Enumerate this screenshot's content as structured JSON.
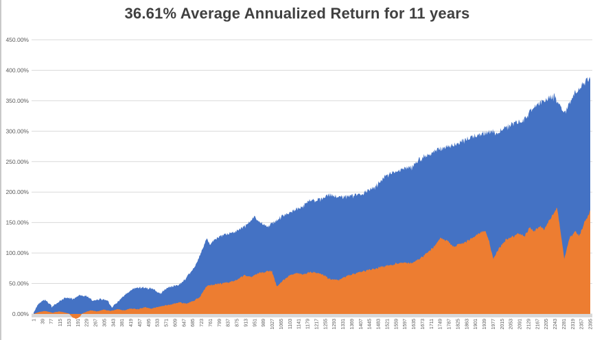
{
  "title": "36.61% Average Annualized Return for 11 years",
  "colors": {
    "series_blue": "#4472C4",
    "series_orange": "#ED7D31",
    "gridline": "#d9d9d9",
    "axis_strip": "#d8d8d8",
    "tick_label": "#595959",
    "title_text": "#404040"
  },
  "chart_data": {
    "type": "area",
    "title": "36.61% Average Annualized Return for 11 years",
    "xlabel": "",
    "ylabel": "",
    "grid": true,
    "legend": "none",
    "x_points_total": 2395,
    "x_axis": {
      "tick_labels": [
        1,
        39,
        77,
        115,
        153,
        191,
        229,
        267,
        305,
        343,
        381,
        419,
        457,
        495,
        533,
        571,
        609,
        647,
        685,
        723,
        761,
        799,
        837,
        875,
        913,
        951,
        989,
        1027,
        1065,
        1103,
        1141,
        1179,
        1217,
        1255,
        1293,
        1331,
        1369,
        1407,
        1445,
        1483,
        1521,
        1559,
        1597,
        1635,
        1673,
        1711,
        1749,
        1787,
        1825,
        1863,
        1901,
        1939,
        1977,
        2015,
        2053,
        2091,
        2129,
        2167,
        2205,
        2243,
        2281,
        2319,
        2357,
        2395
      ]
    },
    "y_axis": {
      "min": 0,
      "max": 450,
      "step": 50,
      "tick_labels": [
        "450.00%",
        "400.00%",
        "350.00%",
        "300.00%",
        "250.00%",
        "200.00%",
        "150.00%",
        "100.00%",
        "50.00%",
        "0.00%"
      ]
    },
    "series": [
      {
        "name": "cumulative-return-blue",
        "color": "#4472C4",
        "unit": "percent",
        "keypoints": [
          [
            1,
            2
          ],
          [
            20,
            16
          ],
          [
            36,
            22
          ],
          [
            50,
            24
          ],
          [
            80,
            12
          ],
          [
            110,
            20
          ],
          [
            140,
            27
          ],
          [
            170,
            25
          ],
          [
            200,
            31
          ],
          [
            230,
            29
          ],
          [
            258,
            21
          ],
          [
            290,
            25
          ],
          [
            320,
            22
          ],
          [
            338,
            11
          ],
          [
            368,
            22
          ],
          [
            400,
            33
          ],
          [
            428,
            41
          ],
          [
            456,
            44
          ],
          [
            486,
            43
          ],
          [
            515,
            41
          ],
          [
            545,
            33
          ],
          [
            575,
            43
          ],
          [
            604,
            46
          ],
          [
            630,
            49
          ],
          [
            655,
            58
          ],
          [
            680,
            70
          ],
          [
            700,
            82
          ],
          [
            715,
            95
          ],
          [
            730,
            108
          ],
          [
            746,
            124
          ],
          [
            760,
            115
          ],
          [
            775,
            121
          ],
          [
            805,
            127
          ],
          [
            835,
            131
          ],
          [
            864,
            135
          ],
          [
            894,
            140
          ],
          [
            923,
            148
          ],
          [
            953,
            161
          ],
          [
            968,
            152
          ],
          [
            1012,
            144
          ],
          [
            1056,
            157
          ],
          [
            1086,
            164
          ],
          [
            1145,
            174
          ],
          [
            1189,
            186
          ],
          [
            1248,
            189
          ],
          [
            1269,
            196
          ],
          [
            1307,
            192
          ],
          [
            1366,
            194
          ],
          [
            1396,
            195
          ],
          [
            1455,
            205
          ],
          [
            1505,
            222
          ],
          [
            1514,
            228
          ],
          [
            1573,
            236
          ],
          [
            1632,
            242
          ],
          [
            1663,
            256
          ],
          [
            1721,
            266
          ],
          [
            1750,
            271
          ],
          [
            1810,
            277
          ],
          [
            1839,
            283
          ],
          [
            1898,
            292
          ],
          [
            1928,
            296
          ],
          [
            1975,
            300
          ],
          [
            1990,
            295
          ],
          [
            2017,
            305
          ],
          [
            2061,
            312
          ],
          [
            2105,
            318
          ],
          [
            2150,
            338
          ],
          [
            2194,
            350
          ],
          [
            2239,
            358
          ],
          [
            2259,
            345
          ],
          [
            2289,
            330
          ],
          [
            2306,
            350
          ],
          [
            2327,
            362
          ],
          [
            2357,
            374
          ],
          [
            2386,
            385
          ],
          [
            2395,
            388
          ]
        ]
      },
      {
        "name": "cumulative-return-orange",
        "color": "#ED7D31",
        "unit": "percent",
        "keypoints": [
          [
            1,
            0
          ],
          [
            22,
            3
          ],
          [
            51,
            5
          ],
          [
            81,
            2
          ],
          [
            110,
            4
          ],
          [
            140,
            2
          ],
          [
            155,
            0
          ],
          [
            169,
            -6
          ],
          [
            184,
            -8
          ],
          [
            199,
            -5
          ],
          [
            208,
            0
          ],
          [
            229,
            4
          ],
          [
            249,
            6
          ],
          [
            273,
            4
          ],
          [
            302,
            7
          ],
          [
            332,
            5
          ],
          [
            362,
            8
          ],
          [
            391,
            6
          ],
          [
            421,
            9
          ],
          [
            450,
            8
          ],
          [
            480,
            11
          ],
          [
            509,
            9
          ],
          [
            539,
            12
          ],
          [
            583,
            15
          ],
          [
            628,
            19
          ],
          [
            657,
            17
          ],
          [
            687,
            21
          ],
          [
            716,
            28
          ],
          [
            746,
            46
          ],
          [
            775,
            48
          ],
          [
            805,
            50
          ],
          [
            864,
            54
          ],
          [
            908,
            64
          ],
          [
            938,
            61
          ],
          [
            967,
            67
          ],
          [
            997,
            69
          ],
          [
            1026,
            71
          ],
          [
            1047,
            45
          ],
          [
            1071,
            54
          ],
          [
            1100,
            63
          ],
          [
            1130,
            67
          ],
          [
            1160,
            65
          ],
          [
            1189,
            69
          ],
          [
            1233,
            67
          ],
          [
            1278,
            57
          ],
          [
            1313,
            56
          ],
          [
            1352,
            63
          ],
          [
            1396,
            68
          ],
          [
            1440,
            72
          ],
          [
            1484,
            76
          ],
          [
            1529,
            80
          ],
          [
            1573,
            84
          ],
          [
            1632,
            84
          ],
          [
            1677,
            95
          ],
          [
            1721,
            110
          ],
          [
            1750,
            124
          ],
          [
            1780,
            120
          ],
          [
            1810,
            110
          ],
          [
            1839,
            116
          ],
          [
            1869,
            121
          ],
          [
            1898,
            127
          ],
          [
            1928,
            135
          ],
          [
            1942,
            137
          ],
          [
            1960,
            120
          ],
          [
            1978,
            90
          ],
          [
            2002,
            108
          ],
          [
            2031,
            122
          ],
          [
            2061,
            127
          ],
          [
            2090,
            133
          ],
          [
            2111,
            126
          ],
          [
            2134,
            142
          ],
          [
            2155,
            136
          ],
          [
            2179,
            144
          ],
          [
            2199,
            139
          ],
          [
            2224,
            157
          ],
          [
            2253,
            174
          ],
          [
            2283,
            91
          ],
          [
            2306,
            125
          ],
          [
            2330,
            136
          ],
          [
            2348,
            128
          ],
          [
            2372,
            152
          ],
          [
            2389,
            162
          ],
          [
            2395,
            172
          ]
        ]
      }
    ]
  }
}
